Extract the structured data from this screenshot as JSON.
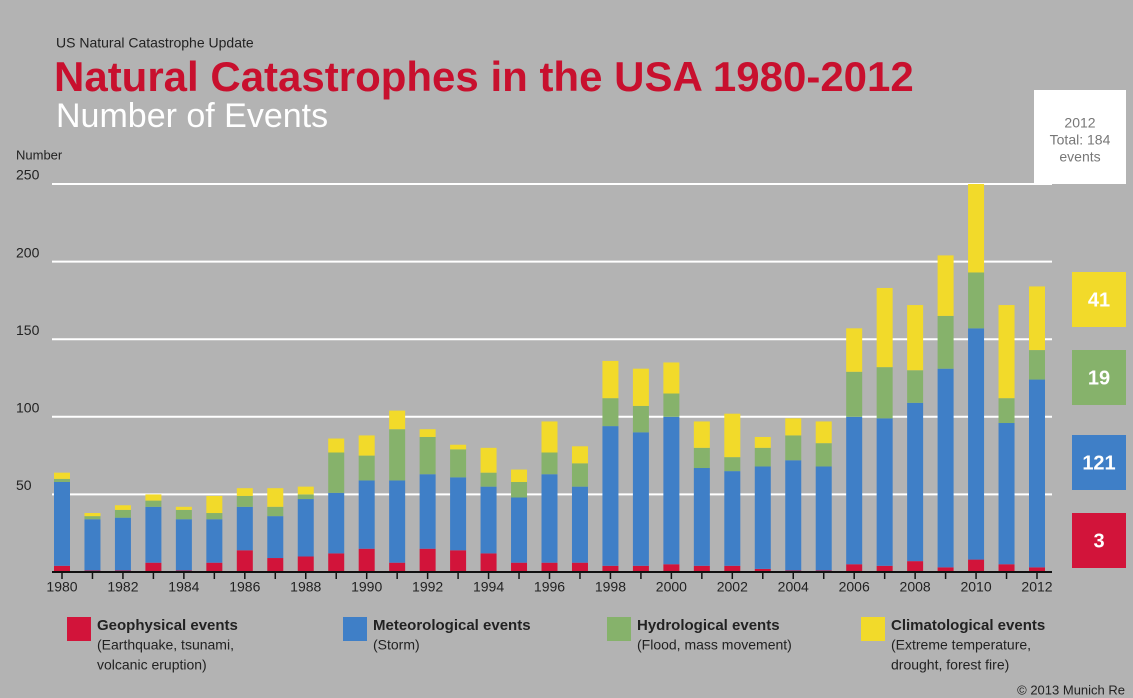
{
  "chart_data": {
    "type": "stacked_bar",
    "header": "US Natural Catastrophe Update",
    "title": "Natural Catastrophes in the USA 1980-2012",
    "subtitle": "Number of Events",
    "y_axis_label": "Number",
    "annotation_lines": [
      "2012",
      "Total: 184",
      "events"
    ],
    "source": "© 2013 Munich Re",
    "categories": [
      "1980",
      null,
      "1982",
      null,
      "1984",
      null,
      "1986",
      null,
      "1988",
      null,
      "1990",
      null,
      "1992",
      null,
      "1994",
      null,
      "1996",
      null,
      "1998",
      null,
      "2000",
      null,
      "2002",
      null,
      "2004",
      null,
      "2006",
      null,
      "2008",
      null,
      "2010",
      null,
      "2012"
    ],
    "series": [
      {
        "name": "Geophysical events",
        "description_lines": [
          "(Earthquake, tsunami,",
          "volcanic eruption)"
        ],
        "color": "#d2143a",
        "values": [
          4,
          1,
          1,
          6,
          1,
          6,
          14,
          9,
          10,
          12,
          15,
          6,
          15,
          14,
          12,
          6,
          6,
          6,
          4,
          4,
          5,
          4,
          4,
          2,
          1,
          1,
          5,
          4,
          7,
          3,
          8,
          5,
          3
        ]
      },
      {
        "name": "Meteorological events",
        "description_lines": [
          "(Storm)"
        ],
        "color": "#3f7fc7",
        "values": [
          54,
          33,
          34,
          36,
          33,
          28,
          28,
          27,
          37,
          39,
          44,
          53,
          48,
          47,
          43,
          42,
          57,
          49,
          90,
          86,
          95,
          63,
          61,
          66,
          71,
          67,
          95,
          95,
          102,
          128,
          149,
          91,
          121
        ]
      },
      {
        "name": "Hydrological events",
        "description_lines": [
          "(Flood, mass movement)"
        ],
        "color": "#86b26b",
        "values": [
          2,
          2,
          5,
          4,
          6,
          4,
          7,
          6,
          3,
          26,
          16,
          33,
          24,
          18,
          9,
          10,
          14,
          15,
          18,
          17,
          15,
          13,
          9,
          12,
          16,
          15,
          29,
          33,
          21,
          34,
          36,
          16,
          19
        ]
      },
      {
        "name": "Climatological events",
        "description_lines": [
          "(Extreme temperature,",
          "drought, forest fire)"
        ],
        "color": "#f2da2a",
        "values": [
          4,
          2,
          3,
          4,
          2,
          11,
          5,
          12,
          5,
          9,
          13,
          12,
          5,
          3,
          16,
          8,
          20,
          11,
          24,
          24,
          20,
          17,
          28,
          7,
          11,
          14,
          28,
          51,
          42,
          39,
          57,
          60,
          41
        ]
      }
    ],
    "ylim": [
      0,
      250
    ],
    "yticks": [
      50,
      100,
      150,
      200,
      250
    ],
    "grid": true
  }
}
